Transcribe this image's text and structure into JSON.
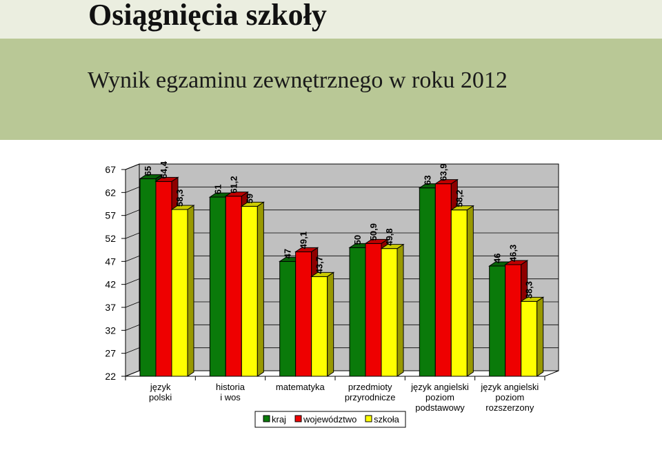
{
  "header": {
    "title": "Osiągnięcia szkoły",
    "subtitle": "Wynik egzaminu zewnętrznego w roku 2012"
  },
  "colors": {
    "kraj": "#0a7a0a",
    "wojewodztwo": "#ee0000",
    "szkola": "#ffff00",
    "background_top": "#ebeee0",
    "band": "#b9c896",
    "wall": "#c0c0c0"
  },
  "chart_data": {
    "type": "bar",
    "title": "",
    "xlabel": "",
    "ylabel": "",
    "ylim": [
      22,
      67
    ],
    "yticks": [
      22,
      27,
      32,
      37,
      42,
      47,
      52,
      57,
      62,
      67
    ],
    "grid": true,
    "legend_position": "bottom",
    "categories": [
      [
        "język",
        "polski"
      ],
      [
        "historia",
        "i wos"
      ],
      [
        "matematyka"
      ],
      [
        "przedmioty",
        "przyrodnicze"
      ],
      [
        "język angielski",
        "poziom",
        "podstawowy"
      ],
      [
        "język angielski",
        "poziom",
        "rozszerzony"
      ]
    ],
    "series": [
      {
        "name": "kraj",
        "values": [
          65,
          61,
          47,
          50,
          63,
          46
        ],
        "labels": [
          "65",
          "61",
          "47",
          "50",
          "63",
          "46"
        ]
      },
      {
        "name": "województwo",
        "values": [
          64.4,
          61.2,
          49.1,
          50.9,
          63.9,
          46.3
        ],
        "labels": [
          "64,4",
          "61,2",
          "49,1",
          "50,9",
          "63,9",
          "46,3"
        ]
      },
      {
        "name": "szkoła",
        "values": [
          58.3,
          59,
          43.7,
          49.8,
          58.2,
          38.3
        ],
        "labels": [
          "58,3",
          "59",
          "43,7",
          "49,8",
          "58,2",
          "38,3"
        ]
      }
    ]
  }
}
